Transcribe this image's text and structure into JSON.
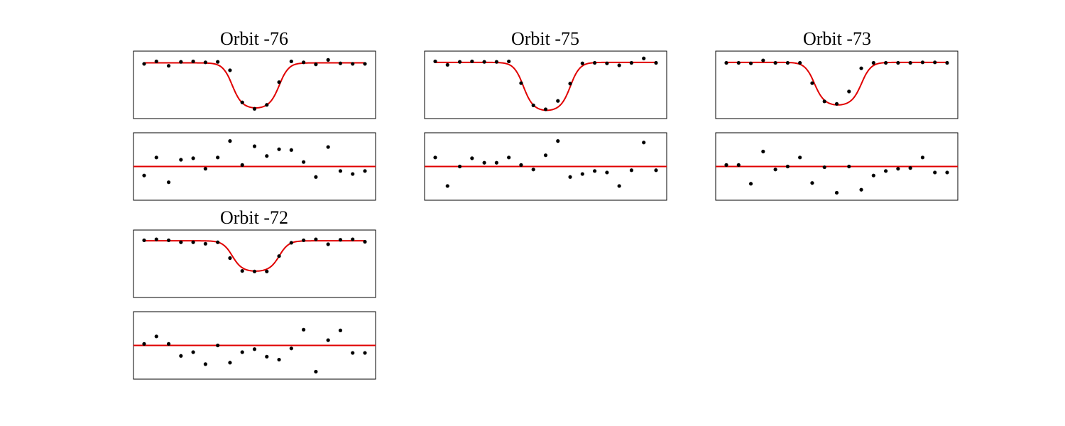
{
  "chart_data": [
    {
      "type": "scatter",
      "title": "Orbit -76",
      "flux": [
        0.95,
        1.0,
        0.91,
        0.99,
        1.0,
        0.98,
        0.99,
        0.82,
        0.17,
        0.04,
        0.12,
        0.58,
        1.0,
        0.98,
        0.94,
        1.03,
        0.96,
        0.95,
        0.95
      ],
      "fit": {
        "baseline": 0.97,
        "depth": 0.92
      },
      "residuals": [
        -0.12,
        0.12,
        -0.21,
        0.09,
        0.11,
        -0.03,
        0.12,
        0.34,
        0.02,
        0.27,
        0.14,
        0.23,
        0.22,
        0.06,
        -0.14,
        0.26,
        -0.06,
        -0.1,
        -0.06
      ],
      "residual_zero": 0
    },
    {
      "type": "scatter",
      "title": "Orbit -75",
      "flux": [
        1.0,
        0.93,
        0.99,
        1.0,
        0.99,
        0.99,
        1.0,
        0.56,
        0.11,
        0.03,
        0.2,
        0.55,
        0.96,
        0.97,
        0.96,
        0.92,
        0.97,
        1.06,
        0.97
      ],
      "fit": {
        "baseline": 0.98,
        "depth": 0.98
      },
      "residuals": [
        0.12,
        -0.26,
        0.0,
        0.11,
        0.05,
        0.05,
        0.12,
        0.02,
        -0.04,
        0.15,
        0.34,
        -0.14,
        -0.1,
        -0.06,
        -0.08,
        -0.26,
        -0.05,
        0.32,
        -0.05
      ],
      "residual_zero": 0
    },
    {
      "type": "scatter",
      "title": "Orbit -73",
      "flux": [
        0.97,
        0.97,
        0.96,
        1.02,
        0.97,
        0.97,
        0.97,
        0.56,
        0.19,
        0.14,
        0.39,
        0.86,
        0.97,
        0.97,
        0.97,
        0.97,
        0.98,
        0.98,
        0.97
      ],
      "fit": {
        "baseline": 0.98,
        "depth": 0.87
      },
      "residuals": [
        0.02,
        0.02,
        -0.23,
        0.2,
        -0.04,
        0.0,
        0.12,
        -0.22,
        -0.01,
        -0.35,
        0.0,
        -0.31,
        -0.12,
        -0.06,
        -0.03,
        -0.02,
        0.12,
        -0.08,
        -0.08
      ],
      "residual_zero": 0
    },
    {
      "type": "scatter",
      "title": "Orbit -72",
      "flux": [
        1.0,
        1.02,
        1.0,
        0.96,
        0.96,
        0.93,
        0.96,
        0.64,
        0.38,
        0.37,
        0.37,
        0.68,
        0.95,
        1.0,
        1.02,
        0.92,
        1.01,
        1.02,
        0.97
      ],
      "fit": {
        "baseline": 0.99,
        "depth": 0.62
      },
      "residuals": [
        0.02,
        0.12,
        0.02,
        -0.14,
        -0.09,
        -0.25,
        0.0,
        -0.23,
        -0.09,
        -0.05,
        -0.15,
        -0.19,
        -0.04,
        0.21,
        -0.35,
        0.07,
        0.2,
        -0.1,
        -0.1
      ],
      "residual_zero": 0
    }
  ]
}
